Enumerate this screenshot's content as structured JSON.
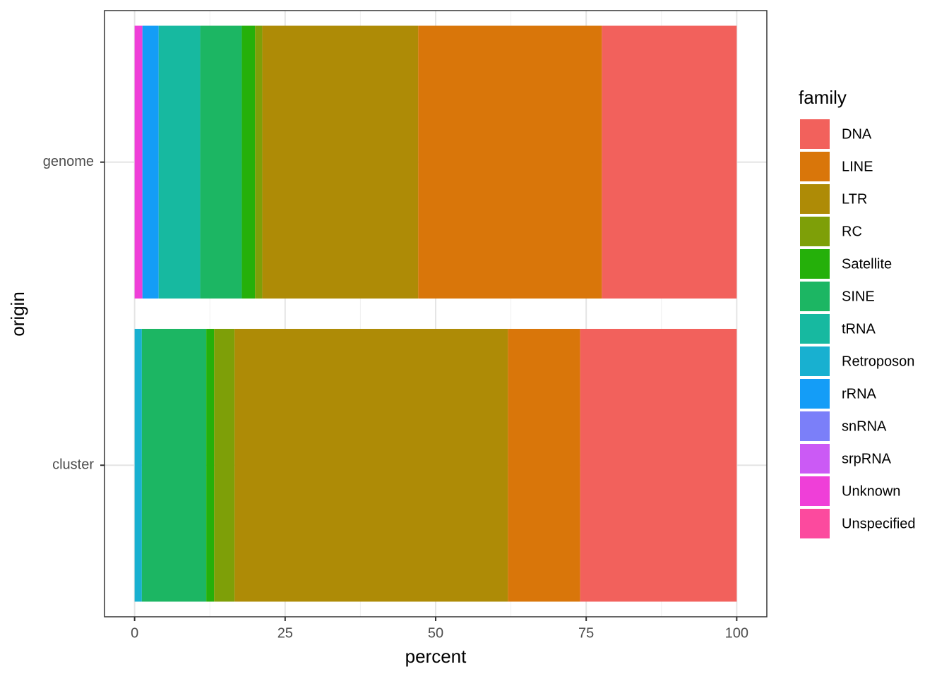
{
  "chart_data": {
    "type": "stacked-bar-horizontal",
    "x_label": "percent",
    "y_label": "origin",
    "categories": [
      "genome",
      "cluster"
    ],
    "series": [
      {
        "name": "DNA",
        "color": "#F2615C",
        "values": [
          22.4,
          26.0
        ]
      },
      {
        "name": "LINE",
        "color": "#D9760A",
        "values": [
          30.5,
          12.0
        ]
      },
      {
        "name": "LTR",
        "color": "#AE8B06",
        "values": [
          25.9,
          45.4
        ]
      },
      {
        "name": "RC",
        "color": "#7E9F08",
        "values": [
          1.2,
          3.4
        ]
      },
      {
        "name": "Satellite",
        "color": "#25B00A",
        "values": [
          2.2,
          1.3
        ]
      },
      {
        "name": "SINE",
        "color": "#1CB663",
        "values": [
          6.9,
          10.7
        ]
      },
      {
        "name": "tRNA",
        "color": "#17B9A0",
        "values": [
          6.9,
          0
        ]
      },
      {
        "name": "Retroposon",
        "color": "#18B0D0",
        "values": [
          0,
          1.2
        ]
      },
      {
        "name": "rRNA",
        "color": "#149DF7",
        "values": [
          2.7,
          0
        ]
      },
      {
        "name": "snRNA",
        "color": "#7B7FF9",
        "values": [
          0,
          0
        ]
      },
      {
        "name": "srpRNA",
        "color": "#CB5AF5",
        "values": [
          0,
          0
        ]
      },
      {
        "name": "Unknown",
        "color": "#EF3FD8",
        "values": [
          1.3,
          0
        ]
      },
      {
        "name": "Unspecified",
        "color": "#FC4A9E",
        "values": [
          0,
          0
        ]
      }
    ],
    "legend_title": "family",
    "legend": "right",
    "xlim": [
      -5,
      105
    ],
    "xticks": [
      0,
      25,
      50,
      75,
      100
    ],
    "grid": true
  }
}
